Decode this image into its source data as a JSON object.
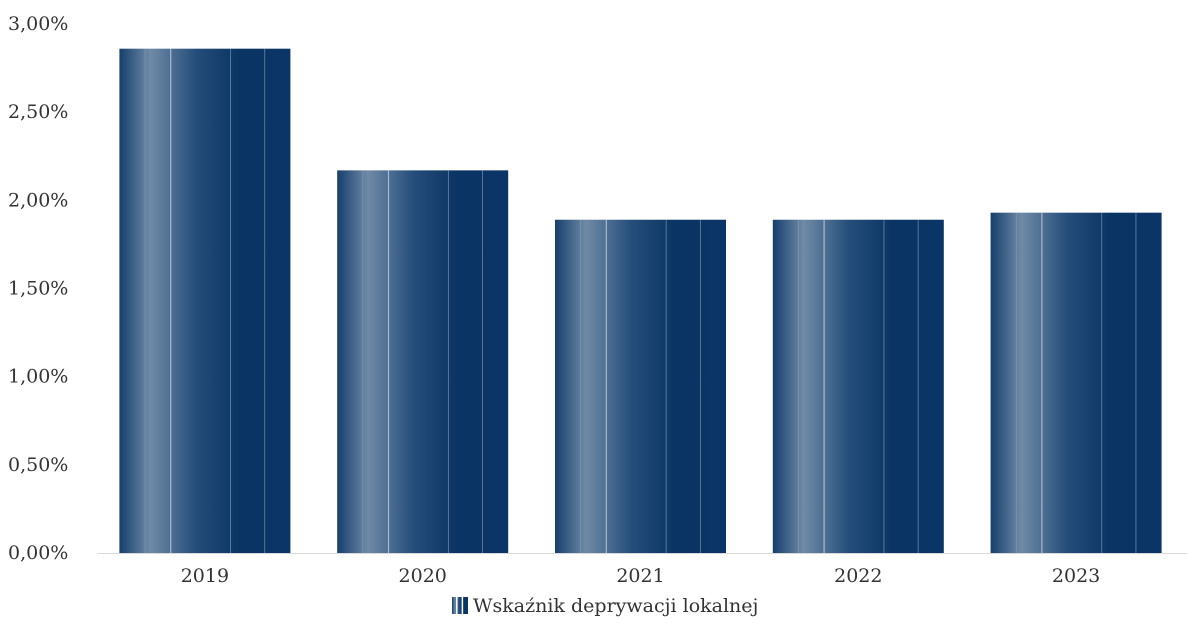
{
  "chart_data": {
    "type": "bar",
    "categories": [
      "2019",
      "2020",
      "2021",
      "2022",
      "2023"
    ],
    "series": [
      {
        "name": "Wskaźnik deprywacji lokalnej",
        "values": [
          2.86,
          2.17,
          1.89,
          1.89,
          1.93
        ]
      }
    ],
    "ylim": [
      0,
      3.0
    ],
    "yticks": [
      0,
      0.5,
      1.0,
      1.5,
      2.0,
      2.5,
      3.0
    ],
    "ytick_labels": [
      "0,00%",
      "0,50%",
      "1,00%",
      "1,50%",
      "2,00%",
      "2,50%",
      "3,00%"
    ],
    "grid": false,
    "legend_position": "bottom-center",
    "bar_color": "#0b3566",
    "bar_color_light": "#6f8aa6"
  }
}
